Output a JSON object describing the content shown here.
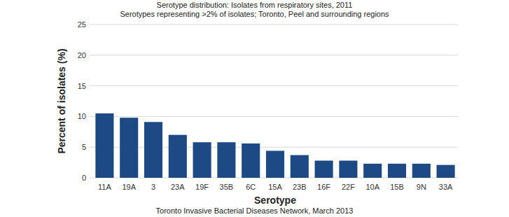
{
  "chart_data": {
    "type": "bar",
    "title": "Serotype distribution: Isolates from respiratory sites, 2011",
    "subtitle": "Serotypes representing >2% of isolates; Toronto, Peel and surrounding regions",
    "x_label": "Serotype",
    "y_label": "Percent of isolates (%)",
    "annotations": [
      "Toronto Invasive Bacterial Diseases Network, March 2013"
    ],
    "categories": [
      "11A",
      "19A",
      "3",
      "23A",
      "19F",
      "35B",
      "6C",
      "15A",
      "23B",
      "16F",
      "22F",
      "10A",
      "15B",
      "9N",
      "33A"
    ],
    "values": [
      10.5,
      9.8,
      9.1,
      7.0,
      5.8,
      5.8,
      5.6,
      4.4,
      3.7,
      2.8,
      2.8,
      2.3,
      2.3,
      2.3,
      2.1
    ],
    "color": "#1d4a84",
    "ylim": [
      0,
      25
    ],
    "yticks": [
      0,
      5,
      10,
      15,
      20,
      25
    ],
    "grid": true
  }
}
